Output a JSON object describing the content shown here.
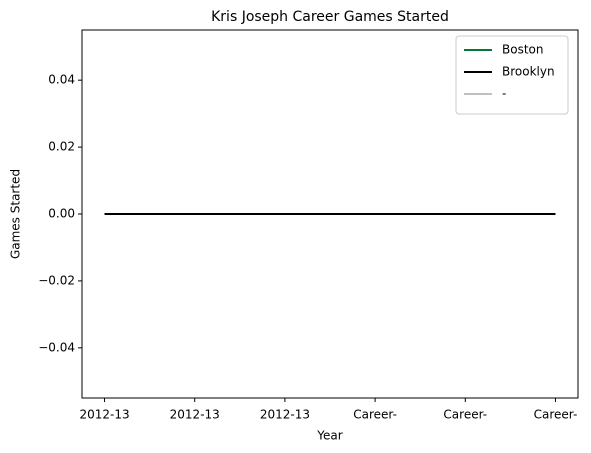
{
  "chart_data": {
    "type": "line",
    "title": "Kris Joseph Career Games Started",
    "xlabel": "Year",
    "ylabel": "Games Started",
    "categories": [
      "2012-13",
      "2012-13",
      "2012-13",
      "Career-",
      "Career-",
      "Career-"
    ],
    "series": [
      {
        "name": "Boston",
        "color": "#007a33",
        "zorder": 1,
        "values": [
          0,
          0,
          0,
          0,
          0,
          0
        ]
      },
      {
        "name": "Brooklyn",
        "color": "#000000",
        "zorder": 3,
        "values": [
          0,
          0,
          0,
          0,
          0,
          0
        ]
      },
      {
        "name": "-",
        "color": "#c0c0c0",
        "zorder": 2,
        "values": [
          0,
          0,
          0,
          0,
          0,
          0
        ]
      }
    ],
    "ylim": [
      -0.055,
      0.055
    ],
    "yticks": [
      {
        "value": -0.04,
        "label": "−0.04"
      },
      {
        "value": -0.02,
        "label": "−0.02"
      },
      {
        "value": 0,
        "label": "0.00"
      },
      0.02,
      0.04
    ],
    "legend": "upper right",
    "grid": false
  }
}
